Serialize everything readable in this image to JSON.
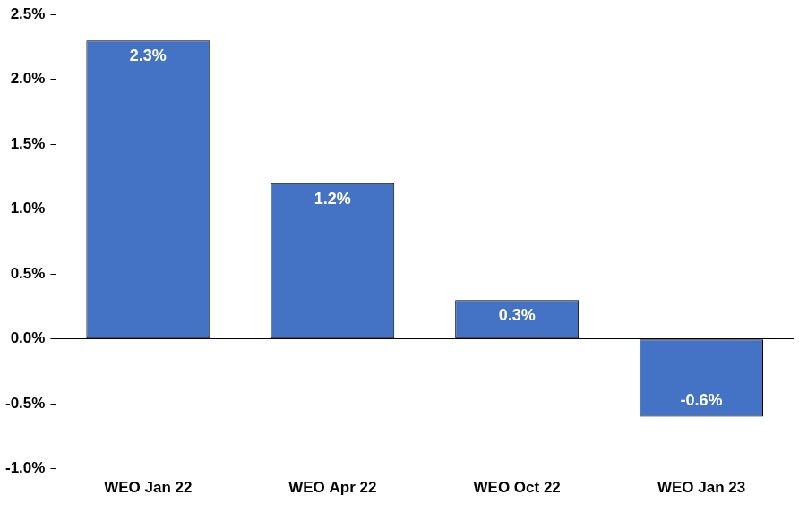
{
  "chart_data": {
    "type": "bar",
    "categories": [
      "WEO Jan 22",
      "WEO Apr 22",
      "WEO Oct 22",
      "WEO Jan 23"
    ],
    "values": [
      2.3,
      1.2,
      0.3,
      -0.6
    ],
    "value_labels": [
      "2.3%",
      "1.2%",
      "0.3%",
      "-0.6%"
    ],
    "color": "#4472c4",
    "ylim": [
      -1.0,
      2.5
    ],
    "yticks": [
      {
        "value": -1.0,
        "label": "-1.0%"
      },
      {
        "value": -0.5,
        "label": "-0.5%"
      },
      {
        "value": 0.0,
        "label": "0.0%"
      },
      {
        "value": 0.5,
        "label": "0.5%"
      },
      {
        "value": 1.0,
        "label": "1.0%"
      },
      {
        "value": 1.5,
        "label": "1.5%"
      },
      {
        "value": 2.0,
        "label": "2.0%"
      },
      {
        "value": 2.5,
        "label": "2.5%"
      }
    ],
    "grid": false,
    "data_labels": true
  }
}
